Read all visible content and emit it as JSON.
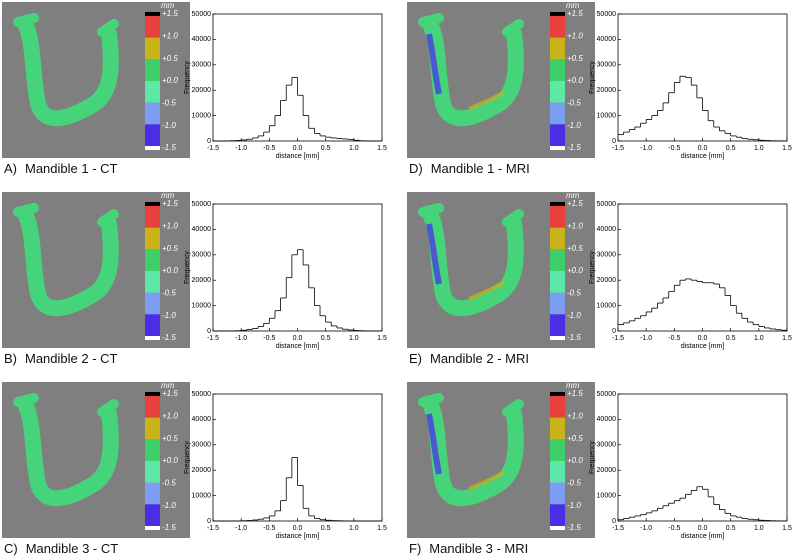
{
  "panels": [
    {
      "label": "A)",
      "caption": "Mandible 1 - CT"
    },
    {
      "label": "B)",
      "caption": "Mandible 2 - CT"
    },
    {
      "label": "C)",
      "caption": "Mandible 3 - CT"
    },
    {
      "label": "D)",
      "caption": "Mandible 1 - MRI"
    },
    {
      "label": "E)",
      "caption": "Mandible 2 - MRI"
    },
    {
      "label": "F)",
      "caption": "Mandible 3 - MRI"
    }
  ],
  "colorbar": {
    "unit": "mm",
    "labels": [
      "+1.5",
      "+1.0",
      "+0.5",
      "+0.0",
      "-0.5",
      "-1.0",
      "-1.5"
    ]
  },
  "chart_data": [
    {
      "type": "histogram",
      "xlabel": "distance [mm]",
      "ylabel": "Frequency",
      "color": "#000000",
      "bins": [
        -1.5,
        -1.4,
        -1.3,
        -1.2,
        -1.1,
        -1.0,
        -0.9,
        -0.8,
        -0.7,
        -0.6,
        -0.5,
        -0.4,
        -0.3,
        -0.2,
        -0.1,
        0.0,
        0.1,
        0.2,
        0.3,
        0.4,
        0.5,
        0.6,
        0.7,
        0.8,
        0.9,
        1.0,
        1.1,
        1.2,
        1.3,
        1.4,
        1.5
      ],
      "values": [
        0,
        0,
        0,
        100,
        200,
        400,
        700,
        1200,
        2000,
        3500,
        6000,
        10000,
        16000,
        22000,
        25000,
        18000,
        10000,
        5000,
        3000,
        2000,
        1500,
        1200,
        1000,
        800,
        600,
        300,
        100,
        50,
        0,
        0
      ],
      "xlim": [
        -1.5,
        1.5
      ],
      "xticks": [
        -1.5,
        {
          "value": -1,
          "label": "-1.0"
        },
        -0.5,
        {
          "value": 0,
          "label": "0.0"
        },
        0.5,
        {
          "value": 1,
          "label": "1.0"
        },
        1.5
      ],
      "ylim": [
        0,
        50000
      ],
      "yticks": [
        0,
        10000,
        20000,
        30000,
        40000,
        50000
      ]
    },
    {
      "type": "histogram",
      "xlabel": "distance [mm]",
      "ylabel": "Frequency",
      "color": "#000000",
      "bins": [
        -1.5,
        -1.4,
        -1.3,
        -1.2,
        -1.1,
        -1.0,
        -0.9,
        -0.8,
        -0.7,
        -0.6,
        -0.5,
        -0.4,
        -0.3,
        -0.2,
        -0.1,
        0.0,
        0.1,
        0.2,
        0.3,
        0.4,
        0.5,
        0.6,
        0.7,
        0.8,
        0.9,
        1.0,
        1.1,
        1.2,
        1.3,
        1.4,
        1.5
      ],
      "values": [
        0,
        0,
        0,
        50,
        100,
        300,
        600,
        1000,
        1800,
        3000,
        5000,
        8000,
        13000,
        21000,
        30000,
        32000,
        26000,
        17000,
        10000,
        6000,
        3500,
        2000,
        1200,
        700,
        400,
        200,
        100,
        0,
        0,
        0
      ],
      "xlim": [
        -1.5,
        1.5
      ],
      "xticks": [
        -1.5,
        {
          "value": -1,
          "label": "-1.0"
        },
        -0.5,
        {
          "value": 0,
          "label": "0.0"
        },
        0.5,
        {
          "value": 1,
          "label": "1.0"
        },
        1.5
      ],
      "ylim": [
        0,
        50000
      ],
      "yticks": [
        0,
        10000,
        20000,
        30000,
        40000,
        50000
      ]
    },
    {
      "type": "histogram",
      "xlabel": "distance [mm]",
      "ylabel": "Frequency",
      "color": "#000000",
      "bins": [
        -1.5,
        -1.4,
        -1.3,
        -1.2,
        -1.1,
        -1.0,
        -0.9,
        -0.8,
        -0.7,
        -0.6,
        -0.5,
        -0.4,
        -0.3,
        -0.2,
        -0.1,
        0.0,
        0.1,
        0.2,
        0.3,
        0.4,
        0.5,
        0.6,
        0.7,
        0.8,
        0.9,
        1.0,
        1.1,
        1.2,
        1.3,
        1.4,
        1.5
      ],
      "values": [
        0,
        0,
        0,
        0,
        0,
        100,
        200,
        400,
        700,
        1200,
        2000,
        4000,
        8000,
        17000,
        25000,
        14000,
        5000,
        2000,
        1000,
        500,
        300,
        150,
        100,
        0,
        0,
        0,
        0,
        0,
        0,
        0
      ],
      "xlim": [
        -1.5,
        1.5
      ],
      "xticks": [
        -1.5,
        {
          "value": -1,
          "label": "-1.0"
        },
        -0.5,
        {
          "value": 0,
          "label": "0.0"
        },
        0.5,
        {
          "value": 1,
          "label": "1.0"
        },
        1.5
      ],
      "ylim": [
        0,
        50000
      ],
      "yticks": [
        0,
        10000,
        20000,
        30000,
        40000,
        50000
      ]
    },
    {
      "type": "histogram",
      "xlabel": "distance [mm]",
      "ylabel": "Frequency",
      "color": "#000000",
      "bins": [
        -1.5,
        -1.4,
        -1.3,
        -1.2,
        -1.1,
        -1.0,
        -0.9,
        -0.8,
        -0.7,
        -0.6,
        -0.5,
        -0.4,
        -0.3,
        -0.2,
        -0.1,
        0.0,
        0.1,
        0.2,
        0.3,
        0.4,
        0.5,
        0.6,
        0.7,
        0.8,
        0.9,
        1.0,
        1.1,
        1.2,
        1.3,
        1.4,
        1.5
      ],
      "values": [
        2500,
        3500,
        4500,
        5500,
        7000,
        8500,
        10000,
        12000,
        15000,
        19000,
        23000,
        25500,
        25000,
        22000,
        17000,
        12000,
        8000,
        5500,
        4000,
        3000,
        2000,
        1500,
        1000,
        700,
        500,
        300,
        200,
        100,
        50,
        0
      ],
      "xlim": [
        -1.5,
        1.5
      ],
      "xticks": [
        -1.5,
        {
          "value": -1,
          "label": "-1.0"
        },
        -0.5,
        {
          "value": 0,
          "label": "0.0"
        },
        0.5,
        {
          "value": 1,
          "label": "1.0"
        },
        1.5
      ],
      "ylim": [
        0,
        50000
      ],
      "yticks": [
        0,
        10000,
        20000,
        30000,
        40000,
        50000
      ]
    },
    {
      "type": "histogram",
      "xlabel": "distance [mm]",
      "ylabel": "Frequency",
      "color": "#000000",
      "bins": [
        -1.5,
        -1.4,
        -1.3,
        -1.2,
        -1.1,
        -1.0,
        -0.9,
        -0.8,
        -0.7,
        -0.6,
        -0.5,
        -0.4,
        -0.3,
        -0.2,
        -0.1,
        0.0,
        0.1,
        0.2,
        0.3,
        0.4,
        0.5,
        0.6,
        0.7,
        0.8,
        0.9,
        1.0,
        1.1,
        1.2,
        1.3,
        1.4,
        1.5
      ],
      "values": [
        2500,
        3200,
        4000,
        5000,
        6000,
        7500,
        9000,
        11000,
        13000,
        15500,
        18000,
        20000,
        20500,
        20000,
        19500,
        19000,
        19000,
        18500,
        17000,
        14000,
        10000,
        7000,
        5000,
        3500,
        2500,
        1800,
        1200,
        800,
        500,
        300
      ],
      "xlim": [
        -1.5,
        1.5
      ],
      "xticks": [
        -1.5,
        {
          "value": -1,
          "label": "-1.0"
        },
        -0.5,
        {
          "value": 0,
          "label": "0.0"
        },
        0.5,
        {
          "value": 1,
          "label": "1.0"
        },
        1.5
      ],
      "ylim": [
        0,
        50000
      ],
      "yticks": [
        0,
        10000,
        20000,
        30000,
        40000,
        50000
      ]
    },
    {
      "type": "histogram",
      "xlabel": "distance [mm]",
      "ylabel": "Frequency",
      "color": "#000000",
      "bins": [
        -1.5,
        -1.4,
        -1.3,
        -1.2,
        -1.1,
        -1.0,
        -0.9,
        -0.8,
        -0.7,
        -0.6,
        -0.5,
        -0.4,
        -0.3,
        -0.2,
        -0.1,
        0.0,
        0.1,
        0.2,
        0.3,
        0.4,
        0.5,
        0.6,
        0.7,
        0.8,
        0.9,
        1.0,
        1.1,
        1.2,
        1.3,
        1.4,
        1.5
      ],
      "values": [
        500,
        1000,
        1500,
        2000,
        2500,
        3200,
        4000,
        5000,
        6000,
        7000,
        8000,
        9000,
        10500,
        12000,
        13500,
        12500,
        9500,
        6500,
        4500,
        3000,
        2000,
        1500,
        1000,
        700,
        500,
        300,
        200,
        100,
        50,
        0
      ],
      "xlim": [
        -1.5,
        1.5
      ],
      "xticks": [
        -1.5,
        {
          "value": -1,
          "label": "-1.0"
        },
        -0.5,
        {
          "value": 0,
          "label": "0.0"
        },
        0.5,
        {
          "value": 1,
          "label": "1.0"
        },
        1.5
      ],
      "ylim": [
        0,
        50000
      ],
      "yticks": [
        0,
        10000,
        20000,
        30000,
        40000,
        50000
      ]
    }
  ]
}
